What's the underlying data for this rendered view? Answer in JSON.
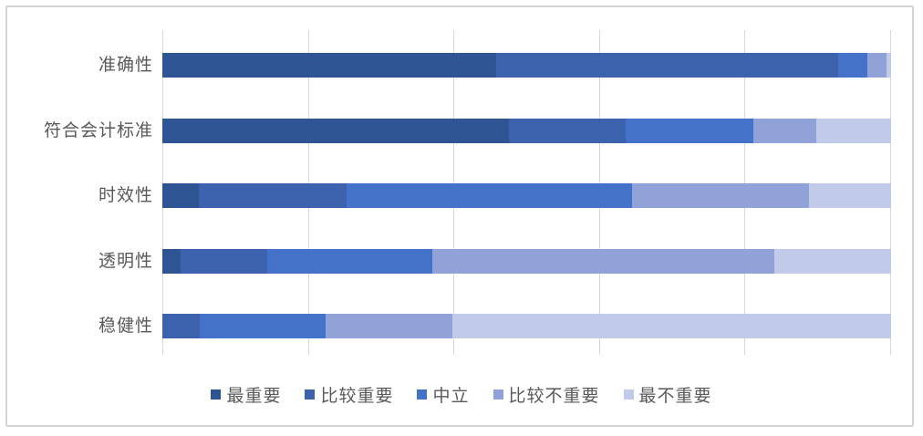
{
  "chart_data": {
    "type": "bar",
    "variant": "horizontal-stacked",
    "title": "",
    "xlabel": "",
    "ylabel": "",
    "categories": [
      "准确性",
      "符合会计标准",
      "时效性",
      "透明性",
      "稳健性"
    ],
    "series": [
      {
        "name": "最重要",
        "color": "#2f5493",
        "values": [
          45.8,
          47.5,
          5.0,
          2.5,
          0.0
        ]
      },
      {
        "name": "比较重要",
        "color": "#3c62ad",
        "values": [
          47.0,
          16.1,
          20.3,
          11.9,
          5.1
        ]
      },
      {
        "name": "中立",
        "color": "#4472c8",
        "values": [
          3.9,
          17.5,
          39.2,
          22.6,
          17.3
        ]
      },
      {
        "name": "比较不重要",
        "color": "#90a2d8",
        "values": [
          2.7,
          8.7,
          24.2,
          47.0,
          17.4
        ]
      },
      {
        "name": "最不重要",
        "color": "#c1cbe9",
        "values": [
          0.6,
          10.2,
          11.3,
          16.0,
          60.2
        ]
      }
    ],
    "xlim": [
      0,
      100
    ],
    "unit": "percent",
    "gridline_step": 20,
    "grid": "vertical-only",
    "axis_tick_labels_visible": false,
    "legend_position": "bottom",
    "colors": {
      "gridline": "#d9d9d9",
      "panel_border": "#d4d4d4",
      "label_text": "#595959",
      "background": "#ffffff"
    }
  }
}
